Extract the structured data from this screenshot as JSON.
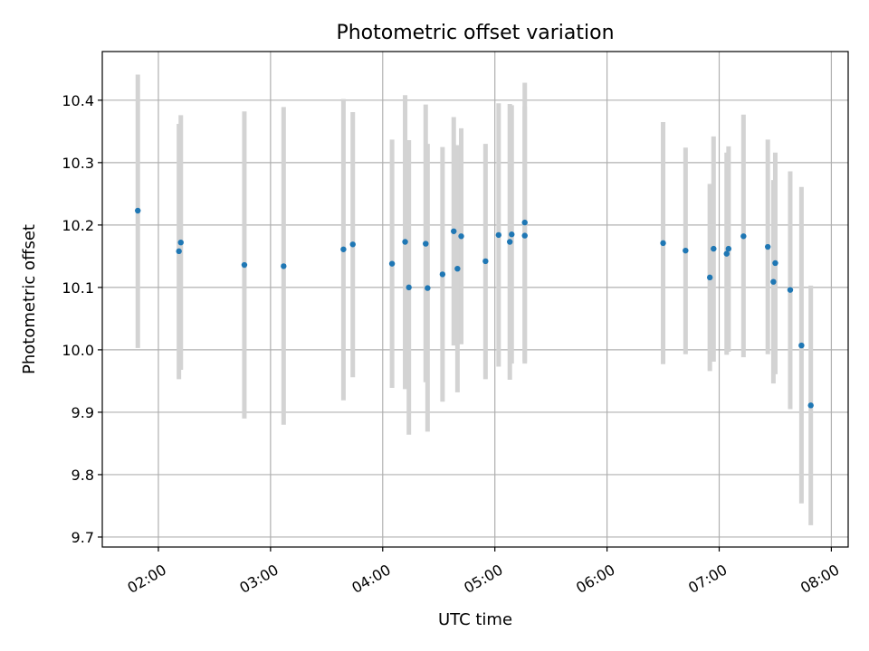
{
  "chart_data": {
    "type": "scatter",
    "title": "Photometric offset variation",
    "xlabel": "UTC time",
    "ylabel": "Photometric offset",
    "x_is_time": true,
    "xlim": [
      "01:30",
      "08:09"
    ],
    "ylim": [
      9.684,
      10.478
    ],
    "xticks": [
      "02:00",
      "03:00",
      "04:00",
      "05:00",
      "06:00",
      "07:00",
      "08:00"
    ],
    "yticks": [
      9.7,
      9.8,
      9.9,
      10.0,
      10.1,
      10.2,
      10.3,
      10.4
    ],
    "ytick_labels": [
      "9.7",
      "9.8",
      "9.9",
      "10.0",
      "10.1",
      "10.2",
      "10.3",
      "10.4"
    ],
    "grid": true,
    "point_color": "#1f77b4",
    "errorbar_color": "#d3d3d3",
    "points": [
      {
        "x": "01:49",
        "y": 10.223,
        "ylo": 10.003,
        "yhi": 10.441
      },
      {
        "x": "02:11",
        "y": 10.158,
        "ylo": 9.953,
        "yhi": 10.362
      },
      {
        "x": "02:12",
        "y": 10.172,
        "ylo": 9.968,
        "yhi": 10.376
      },
      {
        "x": "02:46",
        "y": 10.136,
        "ylo": 9.89,
        "yhi": 10.382
      },
      {
        "x": "03:07",
        "y": 10.134,
        "ylo": 9.88,
        "yhi": 10.389
      },
      {
        "x": "03:39",
        "y": 10.161,
        "ylo": 9.919,
        "yhi": 10.402
      },
      {
        "x": "03:44",
        "y": 10.169,
        "ylo": 9.956,
        "yhi": 10.381
      },
      {
        "x": "04:05",
        "y": 10.138,
        "ylo": 9.939,
        "yhi": 10.337
      },
      {
        "x": "04:12",
        "y": 10.173,
        "ylo": 9.937,
        "yhi": 10.408
      },
      {
        "x": "04:14",
        "y": 10.1,
        "ylo": 9.864,
        "yhi": 10.336
      },
      {
        "x": "04:23",
        "y": 10.17,
        "ylo": 9.948,
        "yhi": 10.393
      },
      {
        "x": "04:24",
        "y": 10.099,
        "ylo": 9.869,
        "yhi": 10.33
      },
      {
        "x": "04:32",
        "y": 10.121,
        "ylo": 9.917,
        "yhi": 10.325
      },
      {
        "x": "04:38",
        "y": 10.19,
        "ylo": 10.007,
        "yhi": 10.373
      },
      {
        "x": "04:40",
        "y": 10.13,
        "ylo": 9.932,
        "yhi": 10.328
      },
      {
        "x": "04:42",
        "y": 10.182,
        "ylo": 10.009,
        "yhi": 10.355
      },
      {
        "x": "04:55",
        "y": 10.142,
        "ylo": 9.953,
        "yhi": 10.33
      },
      {
        "x": "05:02",
        "y": 10.184,
        "ylo": 9.973,
        "yhi": 10.395
      },
      {
        "x": "05:08",
        "y": 10.173,
        "ylo": 9.952,
        "yhi": 10.394
      },
      {
        "x": "05:09",
        "y": 10.185,
        "ylo": 9.978,
        "yhi": 10.392
      },
      {
        "x": "05:16",
        "y": 10.183,
        "ylo": 9.978,
        "yhi": 10.39
      },
      {
        "x": "05:16",
        "y": 10.204,
        "ylo": 9.981,
        "yhi": 10.428
      },
      {
        "x": "06:30",
        "y": 10.171,
        "ylo": 9.977,
        "yhi": 10.365
      },
      {
        "x": "06:42",
        "y": 10.159,
        "ylo": 9.993,
        "yhi": 10.324
      },
      {
        "x": "06:55",
        "y": 10.116,
        "ylo": 9.966,
        "yhi": 10.266
      },
      {
        "x": "06:57",
        "y": 10.162,
        "ylo": 9.981,
        "yhi": 10.342
      },
      {
        "x": "07:04",
        "y": 10.154,
        "ylo": 9.992,
        "yhi": 10.316
      },
      {
        "x": "07:05",
        "y": 10.162,
        "ylo": 9.997,
        "yhi": 10.326
      },
      {
        "x": "07:13",
        "y": 10.182,
        "ylo": 9.988,
        "yhi": 10.377
      },
      {
        "x": "07:26",
        "y": 10.165,
        "ylo": 9.993,
        "yhi": 10.337
      },
      {
        "x": "07:29",
        "y": 10.109,
        "ylo": 9.946,
        "yhi": 10.272
      },
      {
        "x": "07:30",
        "y": 10.139,
        "ylo": 9.961,
        "yhi": 10.316
      },
      {
        "x": "07:38",
        "y": 10.096,
        "ylo": 9.905,
        "yhi": 10.286
      },
      {
        "x": "07:44",
        "y": 10.007,
        "ylo": 9.754,
        "yhi": 10.261
      },
      {
        "x": "07:49",
        "y": 9.911,
        "ylo": 9.719,
        "yhi": 10.103
      }
    ]
  }
}
